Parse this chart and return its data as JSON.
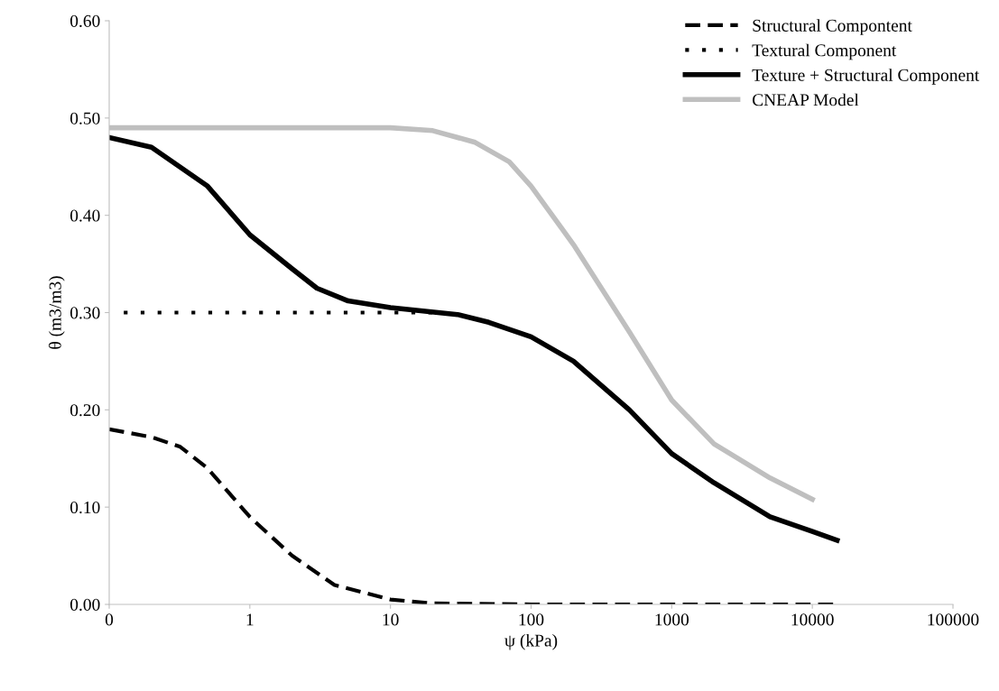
{
  "chart_data": {
    "type": "line",
    "xlabel": "ψ (kPa)",
    "ylabel": "θ (m3/m3)",
    "log": "x",
    "xlim": [
      0.1,
      100000
    ],
    "xticks": [
      {
        "value": 0.1,
        "label": "0"
      },
      1,
      10,
      100,
      1000,
      10000,
      100000
    ],
    "ylim": [
      0,
      0.6
    ],
    "yticks": [
      {
        "value": 0,
        "label": "0.00"
      },
      {
        "value": 0.1,
        "label": "0.10"
      },
      {
        "value": 0.2,
        "label": "0.20"
      },
      {
        "value": 0.3,
        "label": "0.30"
      },
      {
        "value": 0.4,
        "label": "0.40"
      },
      {
        "value": 0.5,
        "label": "0.50"
      },
      {
        "value": 0.6,
        "label": "0.60"
      }
    ],
    "grid": false,
    "legend": "top right",
    "series": [
      {
        "name": "Structural Compontent",
        "color": "#000000",
        "line_style": "dashed",
        "x": [
          0.1,
          0.2,
          0.32,
          0.5,
          1,
          2,
          4,
          10,
          20,
          100,
          1000,
          15000
        ],
        "values": [
          0.18,
          0.172,
          0.162,
          0.14,
          0.09,
          0.05,
          0.02,
          0.005,
          0.001,
          0,
          0,
          0
        ]
      },
      {
        "name": "Textural Component",
        "color": "#000000",
        "line_style": "dotted",
        "x": [
          0.127,
          1,
          10,
          20
        ],
        "values": [
          0.3,
          0.3,
          0.3,
          0.3
        ]
      },
      {
        "name": "Texture + Structural Component",
        "color": "#000000",
        "line_style": "solid",
        "x": [
          0.1,
          0.2,
          0.5,
          1,
          2,
          3,
          5,
          10,
          30,
          50,
          100,
          200,
          500,
          1000,
          2000,
          5000,
          10000,
          15000
        ],
        "values": [
          0.48,
          0.47,
          0.43,
          0.38,
          0.345,
          0.325,
          0.312,
          0.305,
          0.298,
          0.29,
          0.275,
          0.25,
          0.2,
          0.155,
          0.125,
          0.09,
          0.075,
          0.066
        ]
      },
      {
        "name": "CNEAP Model",
        "color": "#bfbfbf",
        "line_style": "solid",
        "x": [
          0.1,
          1,
          10,
          20,
          40,
          70,
          100,
          200,
          500,
          1000,
          2000,
          5000,
          10000
        ],
        "values": [
          0.49,
          0.49,
          0.49,
          0.487,
          0.475,
          0.455,
          0.43,
          0.37,
          0.28,
          0.21,
          0.165,
          0.13,
          0.108
        ]
      }
    ]
  }
}
